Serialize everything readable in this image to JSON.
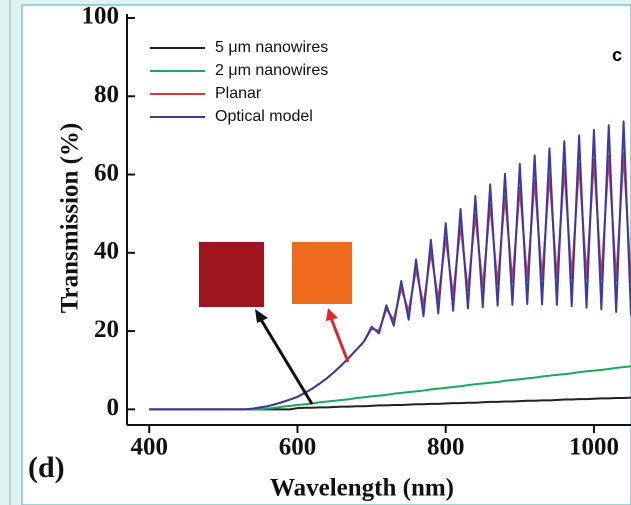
{
  "chart_data": {
    "type": "line",
    "xlabel": "Wavelength (nm)",
    "ylabel": "Transmission (%)",
    "annotations": [
      "(d)",
      "c"
    ],
    "xlim": [
      370,
      1050
    ],
    "xticks": [
      400,
      600,
      800,
      1000
    ],
    "ylim": [
      -4,
      100
    ],
    "yticks": [
      0,
      20,
      40,
      60,
      80,
      100
    ],
    "legend": "upper left",
    "x": [
      400,
      410,
      420,
      430,
      440,
      450,
      460,
      470,
      480,
      490,
      500,
      510,
      520,
      530,
      540,
      550,
      560,
      570,
      580,
      590,
      600,
      610,
      620,
      630,
      640,
      650,
      660,
      670,
      680,
      690,
      700,
      710,
      720,
      730,
      740,
      750,
      760,
      770,
      780,
      790,
      800,
      810,
      820,
      830,
      840,
      850,
      860,
      870,
      880,
      890,
      900,
      910,
      920,
      930,
      940,
      950,
      960,
      970,
      980,
      990,
      1000,
      1010,
      1020,
      1030,
      1040,
      1050
    ],
    "series": [
      {
        "name": "5 μm nanowires",
        "color": "#222222",
        "values": [
          0,
          0,
          0,
          0,
          0,
          0,
          0,
          0,
          0,
          0,
          0,
          0,
          0,
          0,
          0,
          0,
          0,
          0,
          0,
          0,
          0.3,
          0.4,
          0.4,
          0.5,
          0.5,
          0.6,
          0.7,
          0.7,
          0.8,
          0.8,
          0.9,
          1.0,
          1.0,
          1.1,
          1.1,
          1.2,
          1.3,
          1.3,
          1.4,
          1.4,
          1.5,
          1.6,
          1.6,
          1.7,
          1.7,
          1.8,
          1.9,
          1.9,
          2.0,
          2.0,
          2.1,
          2.2,
          2.2,
          2.3,
          2.3,
          2.4,
          2.5,
          2.5,
          2.6,
          2.6,
          2.7,
          2.8,
          2.8,
          2.9,
          2.9,
          3.0
        ]
      },
      {
        "name": "2 μm nanowires",
        "color": "#1aa85a",
        "values": [
          null,
          null,
          null,
          null,
          null,
          null,
          null,
          0,
          0,
          0,
          0,
          0,
          0,
          0,
          0,
          0,
          0.2,
          0.4,
          0.7,
          0.9,
          1.1,
          1.3,
          1.5,
          1.8,
          2.0,
          2.2,
          2.4,
          2.6,
          2.9,
          3.1,
          3.3,
          3.5,
          3.7,
          4.0,
          4.2,
          4.4,
          4.6,
          4.8,
          5.1,
          5.3,
          5.5,
          5.7,
          5.9,
          6.2,
          6.4,
          6.6,
          6.8,
          7.0,
          7.3,
          7.5,
          7.7,
          7.9,
          8.1,
          8.4,
          8.6,
          8.8,
          9.0,
          9.2,
          9.5,
          9.7,
          9.9,
          10.1,
          10.3,
          10.6,
          10.8,
          11.0
        ]
      },
      {
        "name": "Planar",
        "color": "#d9383a",
        "values": [
          0,
          0,
          0,
          0,
          0,
          0,
          0,
          0,
          0,
          0,
          0,
          0,
          0,
          0,
          0.2,
          0.5,
          0.8,
          1.3,
          1.9,
          2.5,
          3.2,
          4.2,
          5.3,
          6.6,
          8,
          9.6,
          11.4,
          13.3,
          15.3,
          17.4,
          20.6,
          20.1,
          25.6,
          22.8,
          31.0,
          25.0,
          35.8,
          26.6,
          40.1,
          28.0,
          43.8,
          29.2,
          46.9,
          30.3,
          49.7,
          31.1,
          52.3,
          31.9,
          54.6,
          32.5,
          56.7,
          33.0,
          58.5,
          33.3,
          60.0,
          33.5,
          61.5,
          33.5,
          62.7,
          33.5,
          63.8,
          33.3,
          64.7,
          32.9,
          65.4,
          32.3
        ]
      },
      {
        "name": "Optical model",
        "color": "#3a3aa8",
        "values": [
          0,
          0,
          0,
          0,
          0,
          0,
          0,
          0,
          0,
          0,
          0,
          0,
          0,
          0,
          0.2,
          0.5,
          0.8,
          1.3,
          1.9,
          2.5,
          3.2,
          4.2,
          5.3,
          6.6,
          8,
          9.6,
          11.4,
          13.3,
          15.3,
          17.4,
          21.1,
          19.4,
          26.6,
          21.4,
          32.8,
          22.9,
          38.3,
          23.8,
          43.3,
          24.5,
          47.6,
          25.2,
          51.2,
          25.8,
          54.5,
          26.1,
          57.5,
          26.5,
          60.2,
          26.7,
          62.7,
          26.9,
          64.9,
          26.8,
          66.7,
          26.7,
          68.5,
          26.4,
          70.0,
          26.0,
          71.4,
          25.6,
          72.6,
          24.9,
          73.6,
          24.0
        ]
      }
    ]
  }
}
